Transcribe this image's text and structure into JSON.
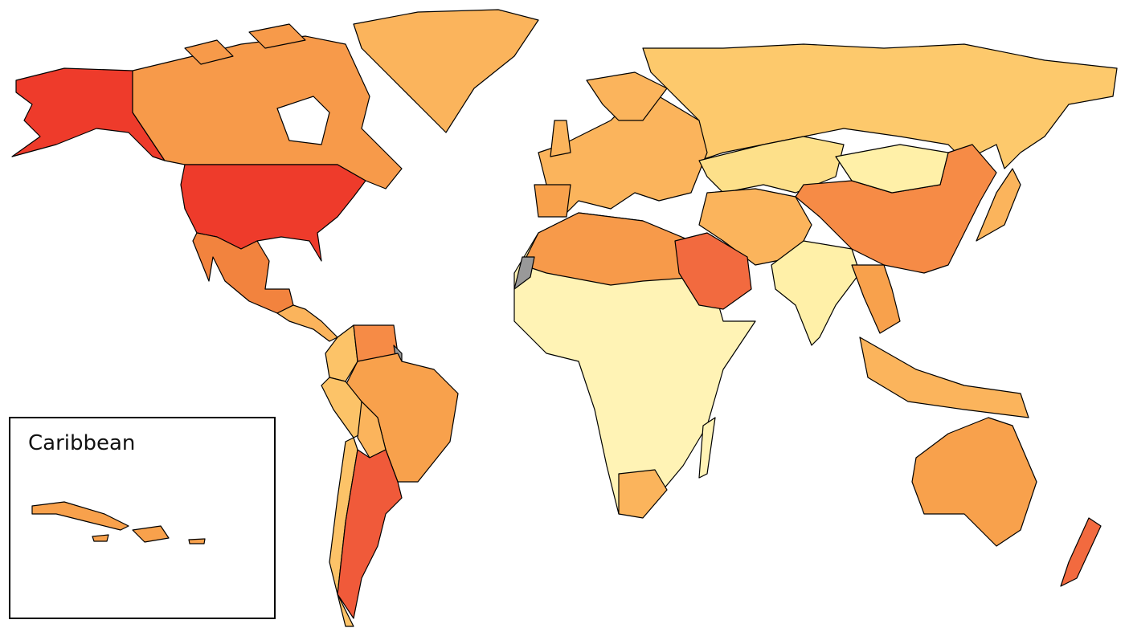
{
  "inset": {
    "title": "Caribbean"
  }
}
